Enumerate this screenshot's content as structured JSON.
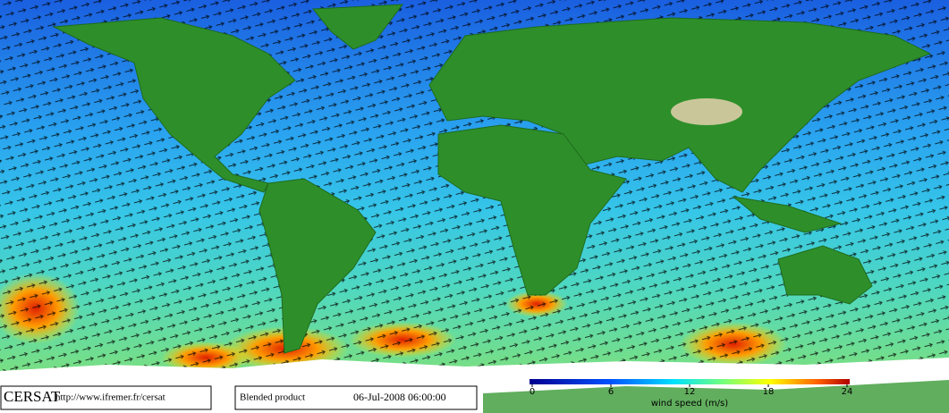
{
  "footer": {
    "logo": "CERSAT",
    "url": "http://www.ifremer.fr/cersat",
    "product": "Blended product",
    "timestamp": "06-Jul-2008 06:00:00"
  },
  "colorbar": {
    "label": "wind speed (m/s)",
    "range": [
      0,
      24
    ],
    "ticks": [
      0,
      6,
      12,
      18,
      24
    ]
  }
}
